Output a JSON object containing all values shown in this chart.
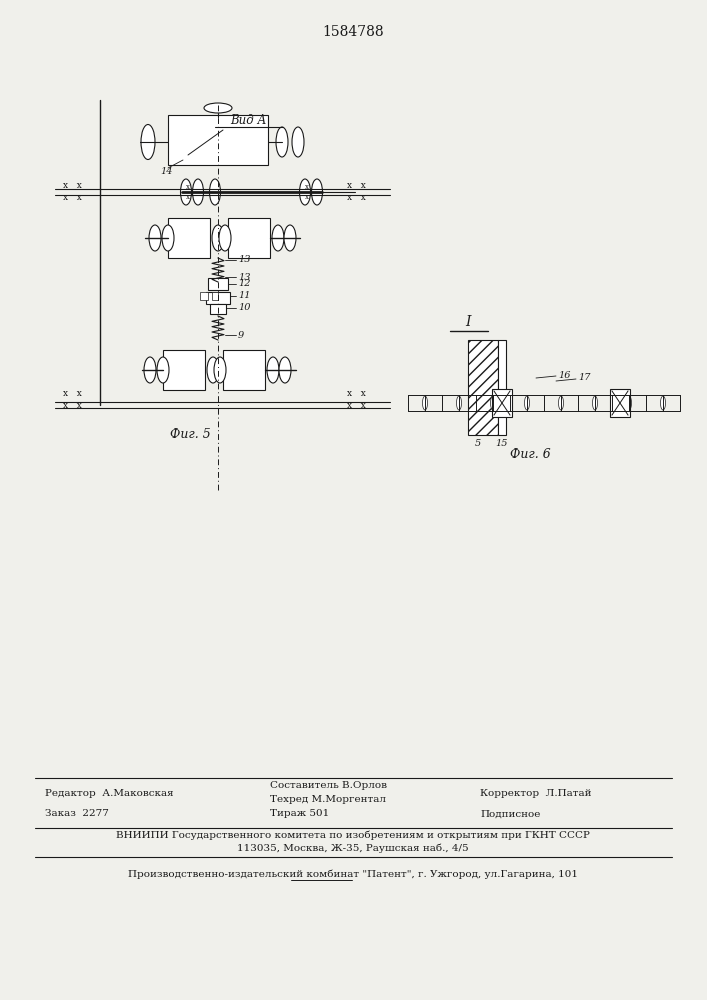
{
  "patent_number": "1584788",
  "fig5_label": "Фиг. 5",
  "fig6_label": "Фиг. 6",
  "vid_a_label": "Вид А",
  "label_I": "I",
  "editor_line": "Редактор  А.Маковская",
  "compositor_line1": "Составитель В.Орлов",
  "techred_line": "Техред М.Моргентал",
  "corrector_line": "Корректор  Л.Патай",
  "order_line": "Заказ  2277",
  "tiraj_line": "Тираж 501",
  "podpisnoe_line": "Подписное",
  "vniiipi_line": "ВНИИПИ Государственного комитета по изобретениям и открытиям при ГКНТ СССР",
  "address_line": "113035, Москва, Ж-35, Раушская наб., 4/5",
  "factory_line": "Производственно-издательский комбинат \"Патент\", г. Ужгород, ул.Гагарина, 101",
  "bg_color": "#f0f0eb",
  "line_color": "#1a1a1a"
}
